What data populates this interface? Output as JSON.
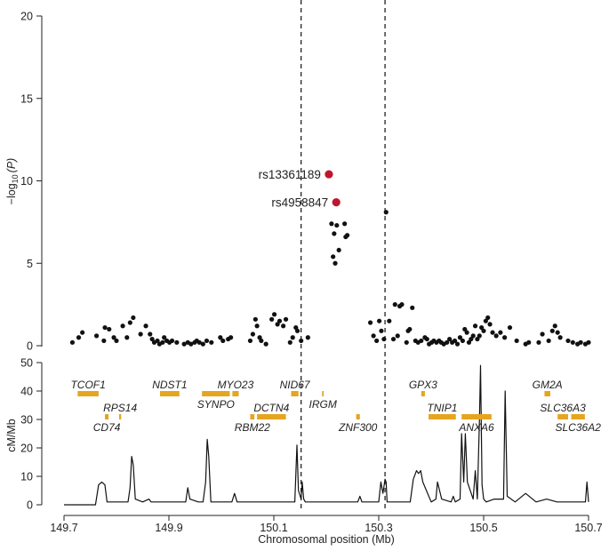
{
  "chart_data": [
    {
      "type": "scatter",
      "title": "",
      "xlabel": "Chromosomal position (Mb)",
      "ylabel": "−log10(P)",
      "ylabel_main": "−log",
      "ylabel_sub": "10",
      "ylabel_paren": "(P)",
      "xlim": [
        149.7,
        150.7
      ],
      "ylim": [
        0,
        20
      ],
      "x_ticks": [
        149.7,
        149.9,
        150.1,
        150.3,
        150.5,
        150.7
      ],
      "x_tick_labels": [
        "149.7",
        "149.9",
        "150.1",
        "150.3",
        "150.5",
        "150.7"
      ],
      "y_ticks": [
        0,
        5,
        10,
        15,
        20
      ],
      "y_tick_labels": [
        "0",
        "5",
        "10",
        "15",
        "20"
      ],
      "boundaries": [
        150.152,
        150.312
      ],
      "highlighted_snps": [
        {
          "id": "rs13361189",
          "x": 150.205,
          "y": 10.4,
          "color": "#c0152f"
        },
        {
          "id": "rs4958847",
          "x": 150.219,
          "y": 8.7,
          "color": "#c0152f"
        }
      ],
      "point_color": "#111111",
      "points": [
        [
          149.716,
          0.2
        ],
        [
          149.728,
          0.5
        ],
        [
          149.735,
          0.8
        ],
        [
          149.762,
          0.6
        ],
        [
          149.776,
          0.3
        ],
        [
          149.778,
          1.1
        ],
        [
          149.786,
          1.0
        ],
        [
          149.795,
          0.5
        ],
        [
          149.8,
          0.3
        ],
        [
          149.812,
          1.2
        ],
        [
          149.82,
          0.5
        ],
        [
          149.826,
          1.4
        ],
        [
          149.832,
          1.7
        ],
        [
          149.846,
          0.7
        ],
        [
          149.856,
          1.2
        ],
        [
          149.864,
          0.7
        ],
        [
          149.868,
          0.4
        ],
        [
          149.872,
          0.2
        ],
        [
          149.878,
          0.3
        ],
        [
          149.882,
          0.1
        ],
        [
          149.888,
          0.2
        ],
        [
          149.891,
          0.5
        ],
        [
          149.896,
          0.3
        ],
        [
          149.901,
          0.2
        ],
        [
          149.906,
          0.3
        ],
        [
          149.915,
          0.2
        ],
        [
          149.929,
          0.1
        ],
        [
          149.936,
          0.2
        ],
        [
          149.942,
          0.1
        ],
        [
          149.949,
          0.2
        ],
        [
          149.953,
          0.3
        ],
        [
          149.958,
          0.2
        ],
        [
          149.965,
          0.1
        ],
        [
          149.972,
          0.3
        ],
        [
          149.981,
          0.2
        ],
        [
          149.998,
          0.5
        ],
        [
          150.003,
          0.3
        ],
        [
          150.013,
          0.4
        ],
        [
          150.018,
          0.5
        ],
        [
          150.055,
          0.3
        ],
        [
          150.06,
          0.7
        ],
        [
          150.065,
          1.6
        ],
        [
          150.068,
          1.2
        ],
        [
          150.073,
          0.5
        ],
        [
          150.076,
          0.3
        ],
        [
          150.085,
          0.1
        ],
        [
          150.096,
          1.6
        ],
        [
          150.101,
          1.9
        ],
        [
          150.107,
          1.3
        ],
        [
          150.111,
          1.5
        ],
        [
          150.118,
          1.2
        ],
        [
          150.123,
          1.6
        ],
        [
          150.131,
          0.2
        ],
        [
          150.136,
          0.5
        ],
        [
          150.142,
          1.1
        ],
        [
          150.145,
          0.9
        ],
        [
          150.152,
          0.3
        ],
        [
          150.165,
          0.5
        ],
        [
          150.21,
          7.4
        ],
        [
          150.215,
          6.8
        ],
        [
          150.22,
          7.3
        ],
        [
          150.224,
          5.8
        ],
        [
          150.217,
          5.0
        ],
        [
          150.213,
          5.4
        ],
        [
          150.235,
          7.4
        ],
        [
          150.24,
          6.7
        ],
        [
          150.237,
          6.6
        ],
        [
          150.314,
          8.1
        ],
        [
          150.284,
          1.4
        ],
        [
          150.29,
          0.6
        ],
        [
          150.296,
          0.3
        ],
        [
          150.301,
          1.5
        ],
        [
          150.305,
          0.9
        ],
        [
          150.31,
          0.4
        ],
        [
          150.32,
          1.5
        ],
        [
          150.328,
          0.4
        ],
        [
          150.331,
          2.5
        ],
        [
          150.336,
          0.6
        ],
        [
          150.34,
          2.4
        ],
        [
          150.344,
          2.5
        ],
        [
          150.353,
          0.2
        ],
        [
          150.356,
          0.9
        ],
        [
          150.359,
          1.0
        ],
        [
          150.364,
          2.3
        ],
        [
          150.37,
          0.3
        ],
        [
          150.375,
          0.2
        ],
        [
          150.381,
          0.3
        ],
        [
          150.388,
          0.5
        ],
        [
          150.392,
          0.4
        ],
        [
          150.396,
          0.1
        ],
        [
          150.401,
          0.2
        ],
        [
          150.405,
          0.3
        ],
        [
          150.41,
          0.2
        ],
        [
          150.415,
          0.3
        ],
        [
          150.419,
          0.2
        ],
        [
          150.424,
          0.1
        ],
        [
          150.43,
          0.2
        ],
        [
          150.435,
          0.4
        ],
        [
          150.44,
          0.2
        ],
        [
          150.445,
          0.3
        ],
        [
          150.45,
          0.1
        ],
        [
          150.455,
          0.5
        ],
        [
          150.46,
          0.3
        ],
        [
          150.464,
          1.0
        ],
        [
          150.468,
          0.8
        ],
        [
          150.472,
          0.2
        ],
        [
          150.476,
          0.4
        ],
        [
          150.48,
          0.6
        ],
        [
          150.484,
          1.2
        ],
        [
          150.488,
          0.4
        ],
        [
          150.492,
          0.6
        ],
        [
          150.496,
          1.1
        ],
        [
          150.5,
          0.9
        ],
        [
          150.504,
          1.5
        ],
        [
          150.508,
          1.7
        ],
        [
          150.512,
          1.3
        ],
        [
          150.517,
          0.8
        ],
        [
          150.524,
          0.6
        ],
        [
          150.532,
          0.8
        ],
        [
          150.54,
          0.5
        ],
        [
          150.55,
          1.1
        ],
        [
          150.563,
          0.3
        ],
        [
          150.58,
          0.1
        ],
        [
          150.586,
          0.2
        ],
        [
          150.605,
          0.2
        ],
        [
          150.612,
          0.7
        ],
        [
          150.624,
          0.3
        ],
        [
          150.631,
          0.9
        ],
        [
          150.636,
          1.2
        ],
        [
          150.641,
          0.8
        ],
        [
          150.646,
          0.5
        ],
        [
          150.661,
          0.3
        ],
        [
          150.67,
          0.2
        ],
        [
          150.679,
          0.1
        ],
        [
          150.685,
          0.2
        ],
        [
          150.694,
          0.1
        ],
        [
          150.7,
          0.2
        ]
      ]
    },
    {
      "type": "line",
      "ylabel": "cM/Mb",
      "xlim": [
        149.7,
        150.7
      ],
      "ylim": [
        0,
        50
      ],
      "y_ticks": [
        0,
        10,
        20,
        30,
        40,
        50
      ],
      "y_tick_labels": [
        "0",
        "10",
        "20",
        "30",
        "40",
        "50"
      ],
      "line_color": "#111111",
      "x": [
        149.7,
        149.76,
        149.766,
        149.772,
        149.778,
        149.782,
        149.79,
        149.822,
        149.826,
        149.829,
        149.832,
        149.836,
        149.85,
        149.862,
        149.866,
        149.9,
        149.932,
        149.936,
        149.94,
        149.956,
        149.965,
        149.97,
        149.973,
        149.976,
        149.98,
        149.99,
        150.0,
        150.02,
        150.025,
        150.03,
        150.06,
        150.1,
        150.14,
        150.144,
        150.147,
        150.152,
        150.154,
        150.157,
        150.16,
        150.2,
        150.26,
        150.264,
        150.268,
        150.3,
        150.304,
        150.308,
        150.312,
        150.314,
        150.316,
        150.33,
        150.36,
        150.366,
        150.372,
        150.376,
        150.38,
        150.384,
        150.4,
        150.409,
        150.412,
        150.42,
        150.438,
        150.442,
        150.446,
        150.455,
        150.458,
        150.462,
        150.465,
        150.469,
        150.48,
        150.484,
        150.488,
        150.492,
        150.494,
        150.497,
        150.5,
        150.505,
        150.52,
        150.538,
        150.541,
        150.545,
        150.56,
        150.58,
        150.6,
        150.62,
        150.64,
        150.66,
        150.68,
        150.694,
        150.697,
        150.7
      ],
      "y": [
        0,
        0,
        7,
        8,
        7,
        1,
        1,
        1,
        6,
        17,
        14,
        2,
        1,
        2,
        1,
        1,
        1,
        6,
        2,
        1,
        1,
        8,
        23,
        17,
        1,
        1,
        1,
        1,
        4,
        1,
        1,
        1,
        1,
        21,
        5,
        2,
        8,
        2,
        1,
        1,
        1,
        3,
        1,
        1,
        8,
        4,
        9,
        8,
        1,
        1,
        1,
        9,
        12,
        11,
        12,
        8,
        1,
        2,
        8,
        2,
        1,
        3,
        1,
        2,
        25,
        8,
        25,
        8,
        2,
        12,
        2,
        30,
        49,
        7,
        2,
        1,
        2,
        2,
        40,
        3,
        1,
        4,
        1,
        2,
        1,
        1,
        1,
        1,
        8,
        1
      ]
    },
    {
      "type": "gene-track",
      "gene_color": "#e5a51f",
      "genes": [
        {
          "name": "TCOF1",
          "start": 149.726,
          "end": 149.766,
          "row": "upper",
          "label_side": "above"
        },
        {
          "name": "CD74",
          "start": 149.778,
          "end": 149.785,
          "row": "lower",
          "label_side": "below"
        },
        {
          "name": "RPS14",
          "start": 149.805,
          "end": 149.809,
          "row": "lower",
          "label_side": "above"
        },
        {
          "name": "NDST1",
          "start": 149.883,
          "end": 149.92,
          "row": "upper",
          "label_side": "above"
        },
        {
          "name": "SYNPO",
          "start": 149.963,
          "end": 150.016,
          "row": "upper",
          "label_side": "below"
        },
        {
          "name": "MYO23",
          "start": 150.021,
          "end": 150.033,
          "row": "upper",
          "label_side": "above"
        },
        {
          "name": "RBM22",
          "start": 150.055,
          "end": 150.063,
          "row": "lower",
          "label_side": "below"
        },
        {
          "name": "DCTN4",
          "start": 150.068,
          "end": 150.123,
          "row": "lower",
          "label_side": "above"
        },
        {
          "name": "NID67",
          "start": 150.133,
          "end": 150.147,
          "row": "upper",
          "label_side": "above"
        },
        {
          "name": "IRGM",
          "start": 150.192,
          "end": 150.195,
          "row": "upper",
          "label_side": "below"
        },
        {
          "name": "ZNF300",
          "start": 150.257,
          "end": 150.264,
          "row": "lower",
          "label_side": "below"
        },
        {
          "name": "GPX3",
          "start": 150.381,
          "end": 150.388,
          "row": "upper",
          "label_side": "above"
        },
        {
          "name": "TNIP1",
          "start": 150.395,
          "end": 150.447,
          "row": "lower",
          "label_side": "above"
        },
        {
          "name": "ANXA6",
          "start": 150.458,
          "end": 150.515,
          "row": "lower",
          "label_side": "below"
        },
        {
          "name": "GM2A",
          "start": 150.616,
          "end": 150.627,
          "row": "upper",
          "label_side": "above"
        },
        {
          "name": "SLC36A3",
          "start": 150.641,
          "end": 150.661,
          "row": "lower",
          "label_side": "above"
        },
        {
          "name": "SLC36A2",
          "start": 150.667,
          "end": 150.693,
          "row": "lower",
          "label_side": "below"
        }
      ]
    }
  ]
}
